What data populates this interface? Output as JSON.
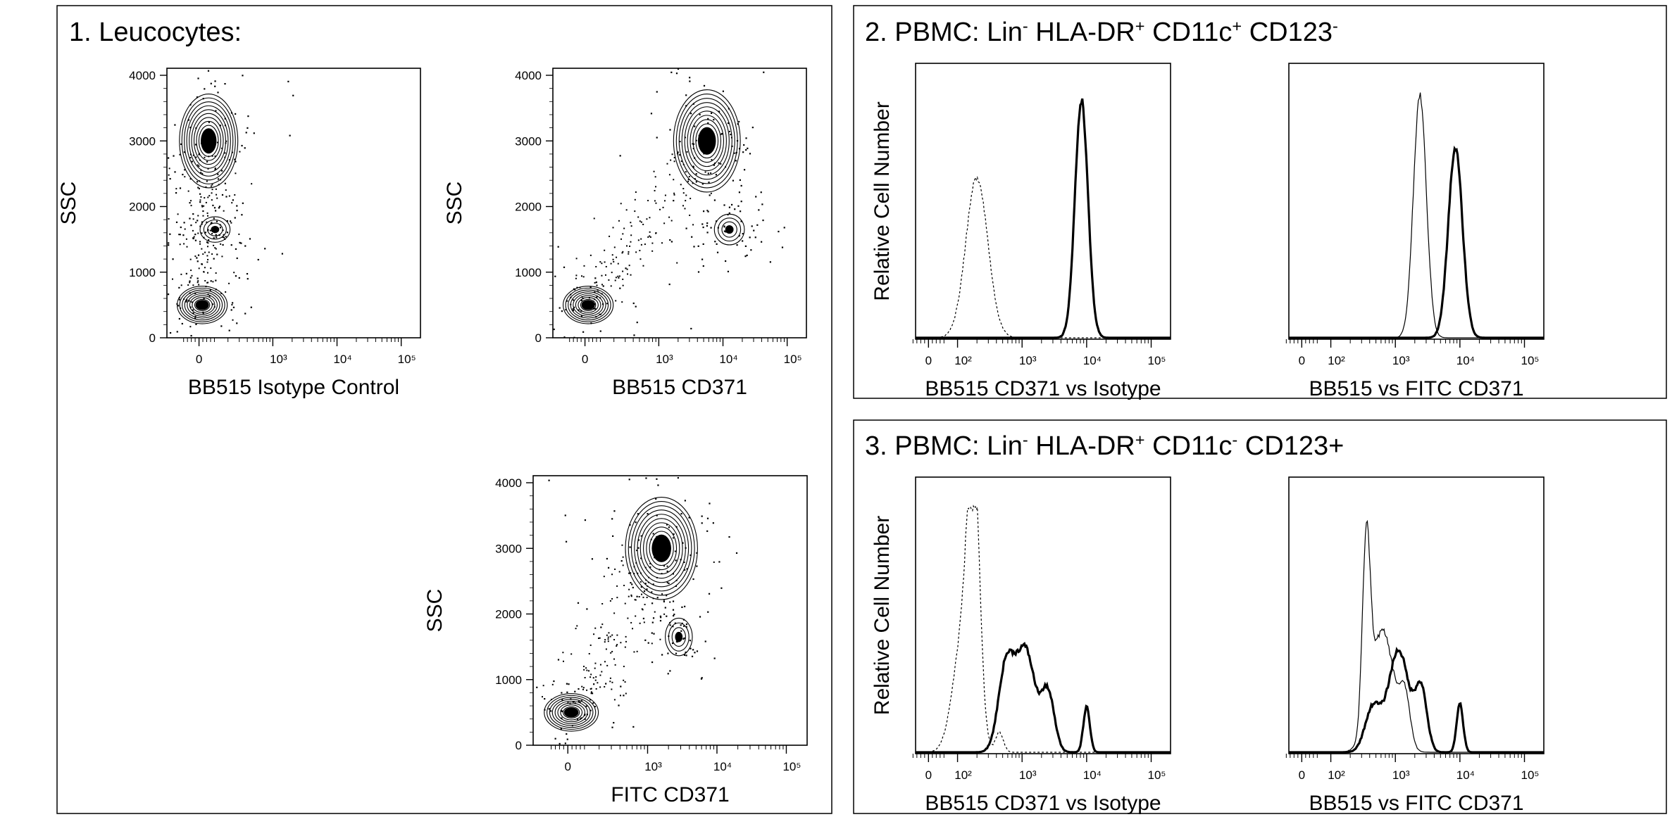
{
  "panels": [
    {
      "title": "1. Leucocytes:"
    },
    {
      "title_parts": [
        "2. PBMC: Lin",
        "-",
        " HLA-DR",
        "+",
        " CD11c",
        "+",
        " CD123",
        "-"
      ]
    },
    {
      "title_parts": [
        "3. PBMC: Lin",
        "-",
        " HLA-DR",
        "+",
        " CD11c",
        "-",
        " CD123+",
        ""
      ]
    }
  ],
  "chart_data": [
    {
      "type": "contour",
      "panel": 1,
      "xlabel": "BB515 Isotype Control",
      "ylabel": "SSC",
      "ylim": [
        0,
        4000
      ],
      "y_ticks": [
        "0",
        "1000",
        "2000",
        "3000",
        "4000"
      ],
      "x_ticks": [
        "0",
        "10³",
        "10⁴",
        "10⁵"
      ],
      "x_scale": "biexponential",
      "populations": [
        {
          "name": "",
          "x_log": 2.0,
          "y": 3000,
          "spread_x": 0.35,
          "spread_y": 550
        },
        {
          "name": "",
          "x_log": 2.1,
          "y": 1650,
          "spread_x": 0.18,
          "spread_y": 150
        },
        {
          "name": "",
          "x_log": 1.9,
          "y": 500,
          "spread_x": 0.3,
          "spread_y": 220
        }
      ]
    },
    {
      "type": "contour",
      "panel": 1,
      "xlabel": "BB515 CD371",
      "ylabel": "SSC",
      "ylim": [
        0,
        4000
      ],
      "y_ticks": [
        "0",
        "1000",
        "2000",
        "3000",
        "4000"
      ],
      "x_ticks": [
        "0",
        "10³",
        "10⁴",
        "10⁵"
      ],
      "x_scale": "biexponential",
      "populations": [
        {
          "name": "",
          "x_log": 3.75,
          "y": 3000,
          "spread_x": 0.4,
          "spread_y": 600
        },
        {
          "name": "",
          "x_log": 4.1,
          "y": 1650,
          "spread_x": 0.18,
          "spread_y": 180
        },
        {
          "name": "",
          "x_log": 1.9,
          "y": 500,
          "spread_x": 0.3,
          "spread_y": 220
        }
      ]
    },
    {
      "type": "contour",
      "panel": 1,
      "xlabel": "FITC  CD371",
      "ylabel": "SSC",
      "ylim": [
        0,
        4000
      ],
      "y_ticks": [
        "0",
        "1000",
        "2000",
        "3000",
        "4000"
      ],
      "x_ticks": [
        "0",
        "10³",
        "10⁴",
        "10⁵"
      ],
      "x_scale": "biexponential",
      "populations": [
        {
          "name": "",
          "x_log": 3.2,
          "y": 3000,
          "spread_x": 0.4,
          "spread_y": 600
        },
        {
          "name": "",
          "x_log": 3.45,
          "y": 1650,
          "spread_x": 0.15,
          "spread_y": 220
        },
        {
          "name": "",
          "x_log": 1.9,
          "y": 500,
          "spread_x": 0.3,
          "spread_y": 220
        }
      ]
    },
    {
      "type": "histogram",
      "panel": 2,
      "xlabel": "BB515 CD371 vs Isotype",
      "ylabel": "Relative Cell Number",
      "x_ticks": [
        "0",
        "10²",
        "10³",
        "10⁴",
        "10⁵"
      ],
      "x_scale": "biexponential",
      "series": [
        {
          "style": "dotted",
          "peaks": [
            {
              "x_log": 2.3,
              "height": 0.66,
              "width": 0.17
            }
          ]
        },
        {
          "style": "bold",
          "peaks": [
            {
              "x_log": 3.92,
              "height": 0.98,
              "width": 0.1
            }
          ]
        }
      ]
    },
    {
      "type": "histogram",
      "panel": 2,
      "xlabel": "BB515 vs FITC CD371",
      "ylabel": "",
      "x_ticks": [
        "0",
        "10²",
        "10³",
        "10⁴",
        "10⁵"
      ],
      "x_scale": "biexponential",
      "series": [
        {
          "style": "thin",
          "peaks": [
            {
              "x_log": 3.38,
              "height": 1.0,
              "width": 0.1
            }
          ]
        },
        {
          "style": "bold",
          "peaks": [
            {
              "x_log": 3.93,
              "height": 0.78,
              "width": 0.11
            }
          ]
        }
      ]
    },
    {
      "type": "histogram",
      "panel": 3,
      "xlabel": "BB515 CD371 vs Isotype",
      "ylabel": "Relative Cell Number",
      "x_ticks": [
        "0",
        "10²",
        "10³",
        "10⁴",
        "10⁵"
      ],
      "x_scale": "biexponential",
      "series": [
        {
          "style": "dotted",
          "peaks": [
            {
              "x_log": 2.25,
              "height": 1.0,
              "width": 0.09
            },
            {
              "x_log": 2.1,
              "height": 0.5,
              "width": 0.16
            },
            {
              "x_log": 2.65,
              "height": 0.08,
              "width": 0.06
            }
          ]
        },
        {
          "style": "bold",
          "peaks": [
            {
              "x_log": 2.75,
              "height": 0.34,
              "width": 0.12
            },
            {
              "x_log": 3.05,
              "height": 0.42,
              "width": 0.15
            },
            {
              "x_log": 3.4,
              "height": 0.24,
              "width": 0.1
            },
            {
              "x_log": 4.0,
              "height": 0.19,
              "width": 0.05
            }
          ]
        }
      ]
    },
    {
      "type": "histogram",
      "panel": 3,
      "xlabel": "BB515 vs FITC CD371",
      "ylabel": "",
      "x_ticks": [
        "0",
        "10²",
        "10³",
        "10⁴",
        "10⁵"
      ],
      "x_scale": "biexponential",
      "series": [
        {
          "style": "thin",
          "peaks": [
            {
              "x_log": 2.55,
              "height": 0.75,
              "width": 0.06
            },
            {
              "x_log": 2.8,
              "height": 0.5,
              "width": 0.18
            },
            {
              "x_log": 3.15,
              "height": 0.2,
              "width": 0.08
            }
          ]
        },
        {
          "style": "bold",
          "peaks": [
            {
              "x_log": 2.65,
              "height": 0.18,
              "width": 0.12
            },
            {
              "x_log": 3.05,
              "height": 0.42,
              "width": 0.16
            },
            {
              "x_log": 3.4,
              "height": 0.25,
              "width": 0.09
            },
            {
              "x_log": 4.0,
              "height": 0.2,
              "width": 0.05
            }
          ]
        }
      ]
    }
  ]
}
